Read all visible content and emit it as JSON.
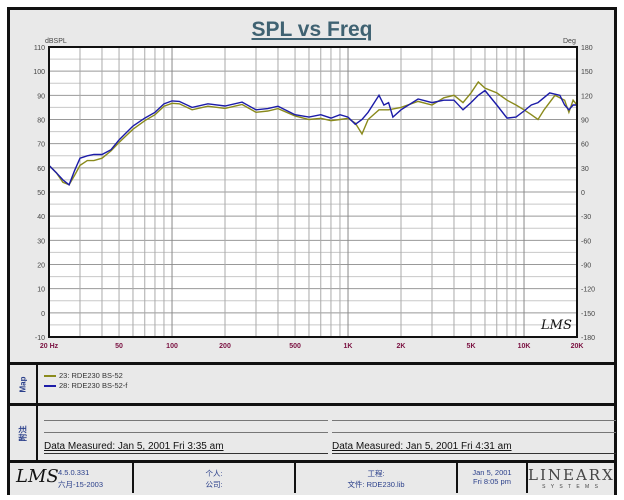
{
  "chart_data": {
    "type": "line",
    "title": "SPL vs Freq",
    "ylabel": "dBSPL",
    "y2label": "Deg",
    "xscale": "log",
    "xlim": [
      20,
      20000
    ],
    "ylim": [
      -10,
      110
    ],
    "y2lim": [
      -180,
      180
    ],
    "yticks": [
      "110",
      "100",
      "90",
      "80",
      "70",
      "60",
      "50",
      "40",
      "30",
      "20",
      "10",
      "0",
      "-10"
    ],
    "y2ticks": [
      "180",
      "150",
      "120",
      "90",
      "60",
      "30",
      "0",
      "-30",
      "-60",
      "-90",
      "-120",
      "-150",
      "-180"
    ],
    "xticks": [
      {
        "v": 20,
        "label": "20 Hz"
      },
      {
        "v": 50,
        "label": "50"
      },
      {
        "v": 100,
        "label": "100"
      },
      {
        "v": 200,
        "label": "200"
      },
      {
        "v": 500,
        "label": "500"
      },
      {
        "v": 1000,
        "label": "1K"
      },
      {
        "v": 2000,
        "label": "2K"
      },
      {
        "v": 5000,
        "label": "5K"
      },
      {
        "v": 10000,
        "label": "10K"
      },
      {
        "v": 20000,
        "label": "20K"
      }
    ],
    "grid": true,
    "series": [
      {
        "name": "23: RDE230  BS-52",
        "color": "#8a8a1c",
        "x": [
          20,
          22,
          24,
          26,
          28,
          30,
          33,
          36,
          40,
          45,
          50,
          60,
          70,
          80,
          90,
          100,
          110,
          130,
          160,
          200,
          250,
          300,
          350,
          400,
          500,
          600,
          700,
          800,
          900,
          1000,
          1100,
          1200,
          1300,
          1500,
          1700,
          2000,
          2500,
          3000,
          3500,
          4000,
          4500,
          5000,
          5500,
          6000,
          7000,
          8000,
          9000,
          10000,
          11000,
          12000,
          13000,
          15000,
          17000,
          18000,
          19000,
          20000
        ],
        "y": [
          61,
          58,
          54,
          53,
          57,
          61,
          63,
          63,
          64,
          67,
          70.5,
          76,
          79.5,
          82,
          85.5,
          86.7,
          86.5,
          84,
          85.5,
          84.6,
          86.2,
          83,
          83.5,
          84.5,
          81.5,
          80,
          80.5,
          79.5,
          80,
          80.5,
          78.5,
          74,
          80,
          84,
          84,
          85,
          87.5,
          86,
          89,
          90,
          87,
          91,
          95.5,
          93,
          91,
          88,
          86,
          84,
          82,
          80,
          84,
          90,
          88,
          83,
          88,
          86
        ]
      },
      {
        "name": "28: RDE230  BS-52-f",
        "color": "#1c1ca8",
        "x": [
          20,
          22,
          24,
          26,
          28,
          30,
          33,
          36,
          40,
          45,
          50,
          60,
          70,
          80,
          90,
          100,
          110,
          130,
          160,
          200,
          250,
          300,
          350,
          400,
          500,
          600,
          700,
          800,
          900,
          1000,
          1100,
          1200,
          1300,
          1500,
          1600,
          1700,
          1800,
          2000,
          2500,
          3000,
          3500,
          4000,
          4500,
          5000,
          5500,
          6000,
          7000,
          8000,
          9000,
          10000,
          11000,
          12000,
          14000,
          16000,
          17000,
          18000,
          19000,
          20000
        ],
        "y": [
          61,
          58,
          55,
          53,
          59,
          64,
          65,
          65.5,
          65.5,
          67.5,
          71.5,
          77.3,
          80.6,
          83,
          86.5,
          87.7,
          87.5,
          85,
          86.5,
          85.6,
          87.2,
          84,
          84.5,
          85.5,
          82,
          81,
          82,
          80.6,
          82,
          81,
          78,
          80,
          83,
          90,
          86,
          87,
          81,
          84,
          88.5,
          87,
          88,
          88,
          84,
          87,
          90,
          92,
          86,
          80.6,
          81,
          83.5,
          86,
          87,
          91,
          90,
          86,
          84,
          86,
          86
        ]
      }
    ]
  },
  "map": {
    "label": "Map",
    "items": [
      "23: RDE230  BS-52",
      "28: RDE230  BS-52-f"
    ]
  },
  "notes": {
    "label": "附注",
    "left": "Data Measured: Jan  5, 2001  Fri  3:35 am",
    "right": "Data Measured: Jan  5, 2001  Fri  4:31 am"
  },
  "footer": {
    "logo": "LMS",
    "version": "4.5.0.331",
    "date": "六月-15-2003",
    "personal": "个人:",
    "company": "公司:",
    "project": "工程:",
    "file": "文件: RDE230.lib",
    "date2": "Jan  5, 2001",
    "time2": "Fri  8:05 pm",
    "brand": "LINEARX",
    "brand_sub": "S Y S T E M S"
  },
  "watermark": "LMS"
}
